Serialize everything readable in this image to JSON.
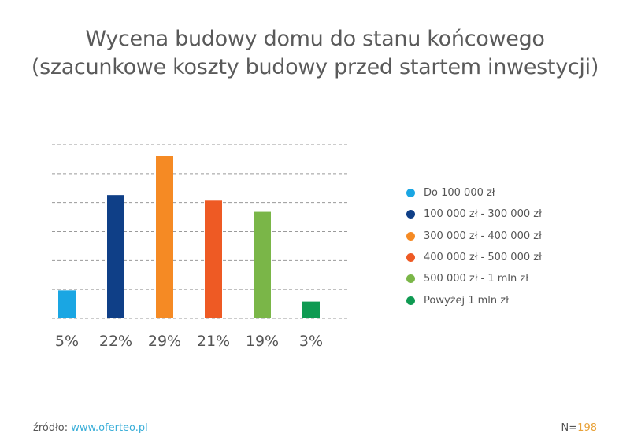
{
  "chart_data": {
    "type": "bar",
    "title": "Wycena budowy domu do stanu końcowego",
    "subtitle": "(szacunkowe koszty budowy przed startem inwestycji)",
    "categories": [
      "Do 100 000 zł",
      "100 000 zł - 300 000 zł",
      "300 000 zł - 400 000 zł",
      "400 000 zł - 500 000 zł",
      "500 000 zł - 1 mln zł",
      "Powyżej 1 mln zł"
    ],
    "values": [
      5,
      22,
      29,
      21,
      19,
      3
    ],
    "value_labels": [
      "5%",
      "22%",
      "29%",
      "21%",
      "19%",
      "3%"
    ],
    "colors": [
      "#1aa6e3",
      "#0f3f87",
      "#f58a24",
      "#ee5a24",
      "#7ab648",
      "#0f9a52"
    ],
    "ylim": [
      0,
      31
    ],
    "grid": true,
    "grid_style": "dashed",
    "legend_position": "right"
  },
  "footer": {
    "source_label": "źródło: ",
    "source_link": "www.oferteo.pl",
    "n_label": "N=",
    "n_value": "198"
  }
}
